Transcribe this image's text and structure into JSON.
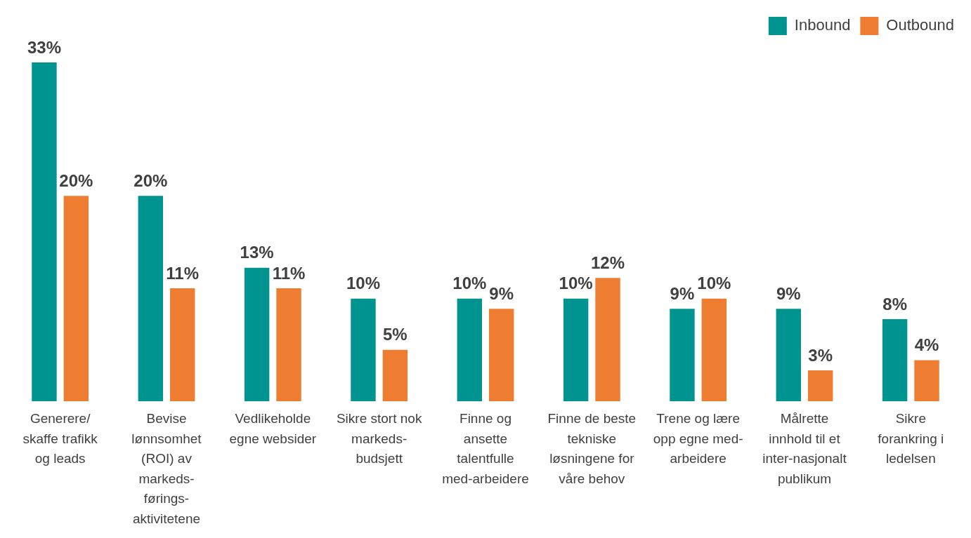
{
  "chart_data": {
    "type": "bar",
    "categories": [
      "Generere/ skaffe trafikk og leads",
      "Bevise lønnsomhet (ROI) av markeds-førings-aktivitetene",
      "Vedlikeholde egne websider",
      "Sikre stort nok markeds-budsjett",
      "Finne og ansette talentfulle med-arbeidere",
      "Finne de beste tekniske løsningene for våre behov",
      "Trene og lære opp egne med-arbeidere",
      "Målrette innhold til et inter-nasjonalt publikum",
      "Sikre forankring i ledelsen"
    ],
    "series": [
      {
        "name": "Inbound",
        "color": "#009490",
        "values": [
          33,
          20,
          13,
          10,
          10,
          10,
          9,
          9,
          8
        ],
        "value_labels": [
          "33%",
          "20%",
          "13%",
          "10%",
          "10%",
          "10%",
          "9%",
          "9%",
          "8%"
        ]
      },
      {
        "name": "Outbound",
        "color": "#ee7d31",
        "values": [
          20,
          11,
          11,
          5,
          9,
          12,
          10,
          3,
          4
        ],
        "value_labels": [
          "20%",
          "11%",
          "11%",
          "5%",
          "9%",
          "12%",
          "10%",
          "3%",
          "4%"
        ]
      }
    ],
    "legend": "top right",
    "grid": false
  }
}
